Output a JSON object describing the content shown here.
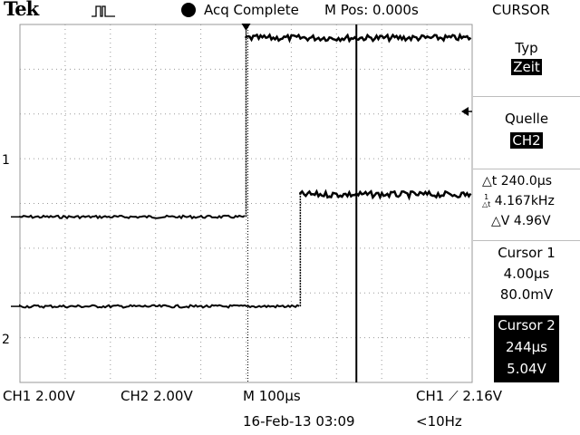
{
  "header": {
    "logo": "Tek",
    "status": "Acq Complete",
    "mpos": "M Pos: 0.000s",
    "menu_title": "CURSOR"
  },
  "menu": {
    "typ_label": "Typ",
    "typ_value": "Zeit",
    "quelle_label": "Quelle",
    "quelle_value": "CH2",
    "readout": {
      "delta_t": "240.0µs",
      "freq": "4.167kHz",
      "delta_v": "4.96V"
    },
    "cursor1": {
      "title": "Cursor 1",
      "time": "4.00µs",
      "volt": "80.0mV"
    },
    "cursor2": {
      "title": "Cursor 2",
      "time": "244µs",
      "volt": "5.04V"
    }
  },
  "markers": {
    "ch1": "1",
    "ch2": "2"
  },
  "footer": {
    "ch1": "CH1  2.00V",
    "ch2": "CH2  2.00V",
    "timebase": "M 100µs",
    "trigger_src": "CH1",
    "trigger_level": "2.16V",
    "date": "16-Feb-13 03:09",
    "freq": "<10Hz"
  },
  "signals": {
    "ch1": {
      "low_level_div": -0.3,
      "high_level_div": 3.7,
      "edge_time_div": 0.0
    },
    "ch2": {
      "low_level_div": -2.3,
      "high_level_div": 0.2,
      "edge_time_div": 1.2
    }
  },
  "cursors": {
    "cursor1_time_div": 0.04,
    "cursor2_time_div": 2.44
  }
}
